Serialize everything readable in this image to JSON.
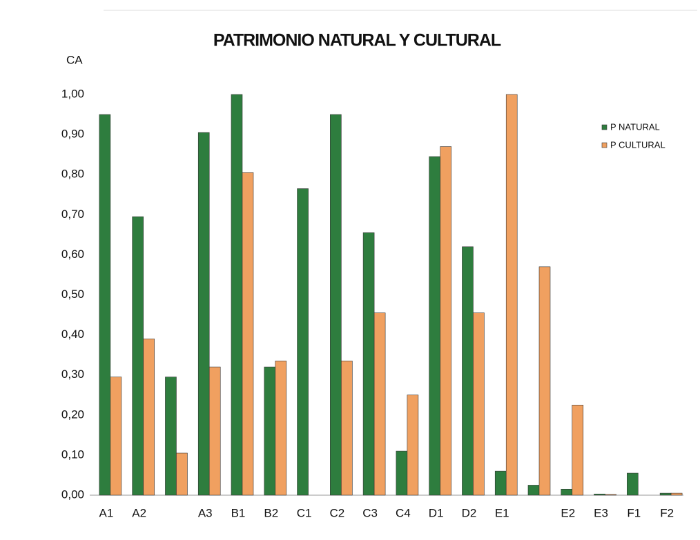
{
  "chart_data": {
    "type": "bar",
    "title": "PATRIMONIO NATURAL Y CULTURAL",
    "y_label": "CA",
    "categories": [
      "A1",
      "A2",
      null,
      "A3",
      "B1",
      "B2",
      "C1",
      "C2",
      "C3",
      "C4",
      "D1",
      "D2",
      "E1",
      null,
      "E2",
      "E3",
      "F1",
      "F2"
    ],
    "series": [
      {
        "name": "P NATURAL",
        "color": "#2e7d3e",
        "values": [
          0.95,
          0.695,
          0.295,
          0.905,
          1.0,
          0.32,
          0.765,
          0.95,
          0.655,
          0.11,
          0.845,
          0.62,
          0.06,
          0.025,
          0.015,
          0.003,
          0.055,
          0.005
        ]
      },
      {
        "name": "P CULTURAL",
        "color": "#f0a060",
        "values": [
          0.295,
          0.39,
          0.105,
          0.32,
          0.805,
          0.335,
          0,
          0.335,
          0.455,
          0.25,
          0.87,
          0.455,
          1.0,
          0.57,
          0.225,
          0.002,
          0,
          0.005
        ]
      }
    ],
    "ylim": [
      0,
      1
    ],
    "yticks": [
      {
        "value": 0,
        "label": "0,00"
      },
      {
        "value": 0.1,
        "label": "0,10"
      },
      {
        "value": 0.2,
        "label": "0,20"
      },
      {
        "value": 0.3,
        "label": "0,30"
      },
      {
        "value": 0.4,
        "label": "0,40"
      },
      {
        "value": 0.5,
        "label": "0,50"
      },
      {
        "value": 0.6,
        "label": "0,60"
      },
      {
        "value": 0.7,
        "label": "0,70"
      },
      {
        "value": 0.8,
        "label": "0,80"
      },
      {
        "value": 0.9,
        "label": "0,90"
      },
      {
        "value": 1,
        "label": "1,00"
      }
    ],
    "legend": "top-right",
    "grid": false
  }
}
